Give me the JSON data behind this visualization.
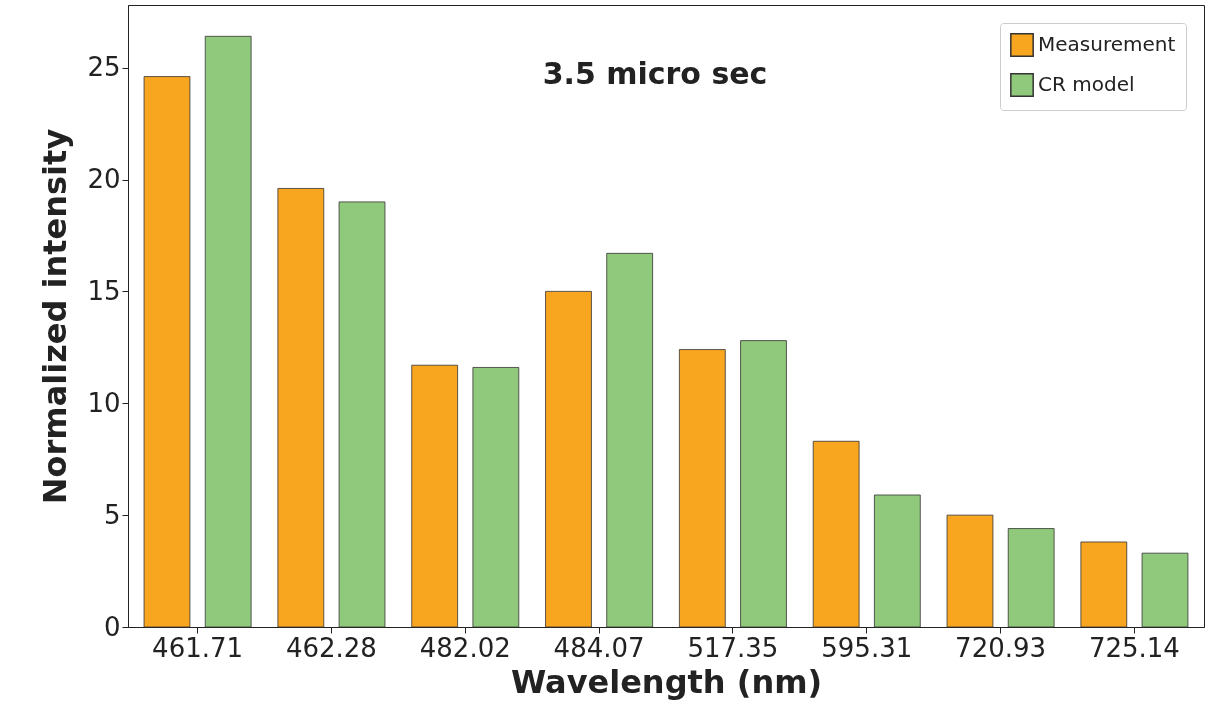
{
  "chart_data": {
    "type": "bar",
    "xlabel": "Wavelength (nm)",
    "ylabel": "Normalized intensity",
    "categories": [
      "461.71",
      "462.28",
      "482.02",
      "484.07",
      "517.35",
      "595.31",
      "720.93",
      "725.14"
    ],
    "series": [
      {
        "name": "Measurement",
        "color": "#f8a51f",
        "values": [
          24.6,
          19.6,
          11.7,
          15.0,
          12.4,
          8.3,
          5.0,
          3.8
        ]
      },
      {
        "name": "CR model",
        "color": "#90c97b",
        "values": [
          26.4,
          19.0,
          11.6,
          16.7,
          12.8,
          5.9,
          4.4,
          3.3
        ]
      }
    ],
    "ylim": [
      0,
      27.8
    ],
    "yticks": [
      0,
      5,
      10,
      15,
      20,
      25
    ],
    "grid": false,
    "legend": "top right",
    "annotations": [
      "3.5 micro sec"
    ]
  }
}
